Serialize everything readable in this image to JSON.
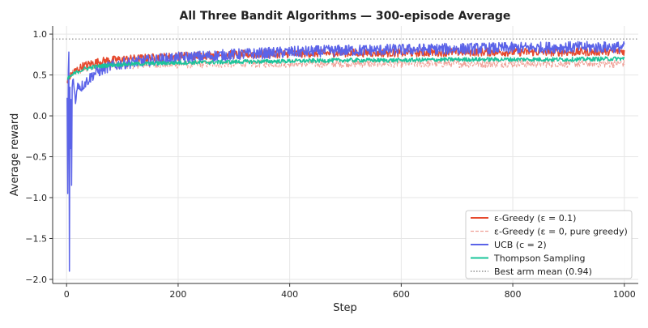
{
  "chart_data": {
    "type": "line",
    "title": "All Three Bandit Algorithms — 300-episode Average",
    "xlabel": "Step",
    "ylabel": "Average reward",
    "xlim": [
      -25,
      1025
    ],
    "ylim": [
      -2.05,
      1.1
    ],
    "x_ticks": [
      0,
      200,
      400,
      600,
      800,
      1000
    ],
    "y_ticks": [
      1.0,
      0.5,
      0.0,
      -0.5,
      -1.0,
      -1.5,
      -2.0
    ],
    "x_tick_labels": [
      "0",
      "200",
      "400",
      "600",
      "800",
      "1000"
    ],
    "y_tick_labels": [
      "1.0",
      "0.5",
      "0.0",
      "−0.5",
      "−1.0",
      "−1.5",
      "−2.0"
    ],
    "grid": true,
    "legend_position": "bottom-right",
    "reference_line": {
      "name": "Best arm mean (0.94)",
      "y": 0.94,
      "color": "#777777",
      "style": "dotted"
    },
    "series": [
      {
        "name": "ε-Greedy (ε = 0.1)",
        "color": "#e6492d",
        "style": "solid",
        "x": [
          1,
          5,
          10,
          20,
          30,
          50,
          75,
          100,
          150,
          200,
          250,
          300,
          400,
          500,
          600,
          700,
          800,
          900,
          1000
        ],
        "y": [
          0.42,
          0.47,
          0.52,
          0.57,
          0.61,
          0.65,
          0.68,
          0.69,
          0.71,
          0.73,
          0.74,
          0.75,
          0.76,
          0.77,
          0.77,
          0.78,
          0.78,
          0.78,
          0.79
        ],
        "noise": 0.05
      },
      {
        "name": "ε-Greedy (ε = 0, pure greedy)",
        "color": "#f0a097",
        "style": "dashed",
        "x": [
          1,
          5,
          10,
          20,
          30,
          50,
          75,
          100,
          150,
          200,
          300,
          400,
          500,
          600,
          700,
          800,
          900,
          1000
        ],
        "y": [
          0.42,
          0.48,
          0.52,
          0.55,
          0.57,
          0.6,
          0.61,
          0.62,
          0.63,
          0.63,
          0.64,
          0.64,
          0.64,
          0.64,
          0.64,
          0.64,
          0.64,
          0.64
        ],
        "noise": 0.05
      },
      {
        "name": "UCB (c = 2)",
        "color": "#5b63e8",
        "style": "solid",
        "x": [
          1,
          2,
          3,
          4,
          5,
          6,
          7,
          8,
          9,
          10,
          12,
          14,
          16,
          18,
          20,
          25,
          30,
          40,
          50,
          75,
          100,
          150,
          200,
          300,
          400,
          500,
          600,
          700,
          800,
          900,
          1000
        ],
        "y": [
          0.22,
          -0.95,
          0.55,
          0.78,
          -1.9,
          0.35,
          -0.4,
          0.2,
          -0.85,
          0.35,
          0.45,
          0.3,
          0.15,
          0.3,
          0.4,
          0.35,
          0.38,
          0.45,
          0.52,
          0.6,
          0.64,
          0.68,
          0.71,
          0.75,
          0.78,
          0.8,
          0.81,
          0.82,
          0.83,
          0.84,
          0.84
        ],
        "noise": 0.07
      },
      {
        "name": "Thompson Sampling",
        "color": "#1ac49a",
        "style": "solid",
        "x": [
          1,
          5,
          10,
          20,
          30,
          50,
          75,
          100,
          150,
          200,
          300,
          400,
          500,
          600,
          700,
          800,
          900,
          1000
        ],
        "y": [
          0.45,
          0.47,
          0.5,
          0.54,
          0.57,
          0.6,
          0.62,
          0.63,
          0.64,
          0.65,
          0.66,
          0.67,
          0.68,
          0.68,
          0.69,
          0.69,
          0.69,
          0.7
        ],
        "noise": 0.025
      }
    ]
  }
}
